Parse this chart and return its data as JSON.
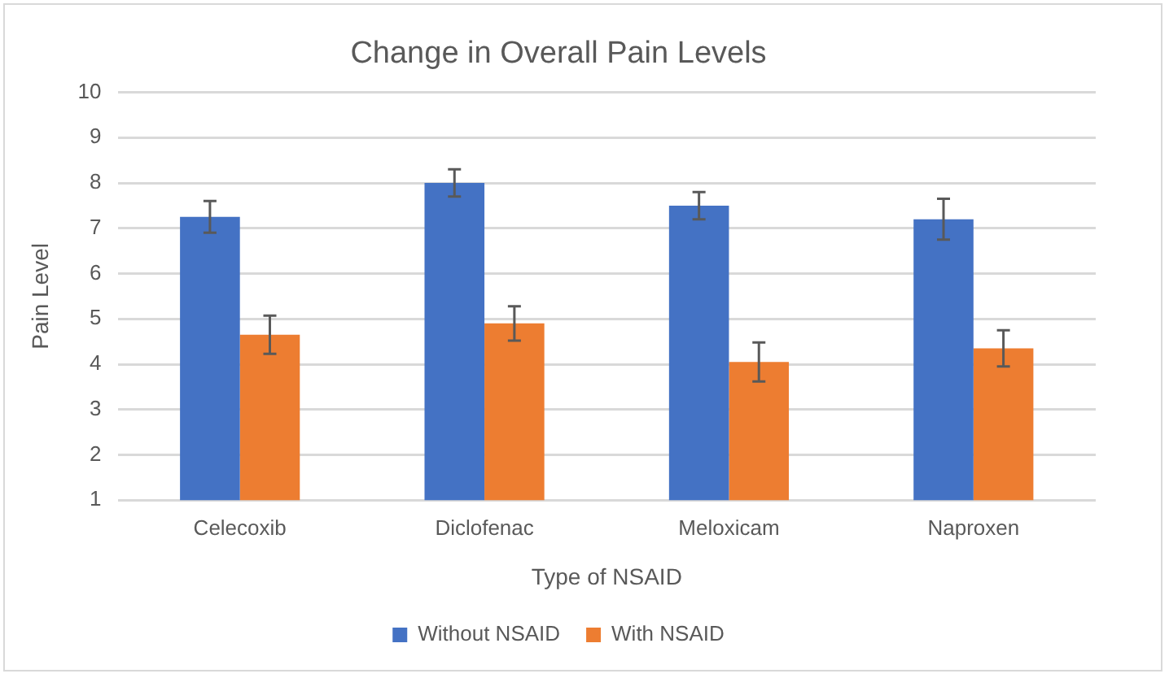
{
  "chart_data": {
    "type": "bar",
    "title": "Change in Overall Pain Levels",
    "xlabel": "Type of NSAID",
    "ylabel": "Pain Level",
    "categories": [
      "Celecoxib",
      "Diclofenac",
      "Meloxicam",
      "Naproxen"
    ],
    "series": [
      {
        "name": "Without NSAID",
        "color": "#4472c4",
        "values": [
          7.25,
          8.0,
          7.5,
          7.2
        ],
        "errors": [
          0.35,
          0.3,
          0.3,
          0.45
        ]
      },
      {
        "name": "With NSAID",
        "color": "#ed7d31",
        "values": [
          4.65,
          4.9,
          4.05,
          4.35
        ],
        "errors": [
          0.42,
          0.38,
          0.43,
          0.4
        ]
      }
    ],
    "ylim": [
      1,
      10
    ],
    "yticks": [
      1,
      2,
      3,
      4,
      5,
      6,
      7,
      8,
      9,
      10
    ],
    "grid": "y",
    "legend": "bottom"
  }
}
